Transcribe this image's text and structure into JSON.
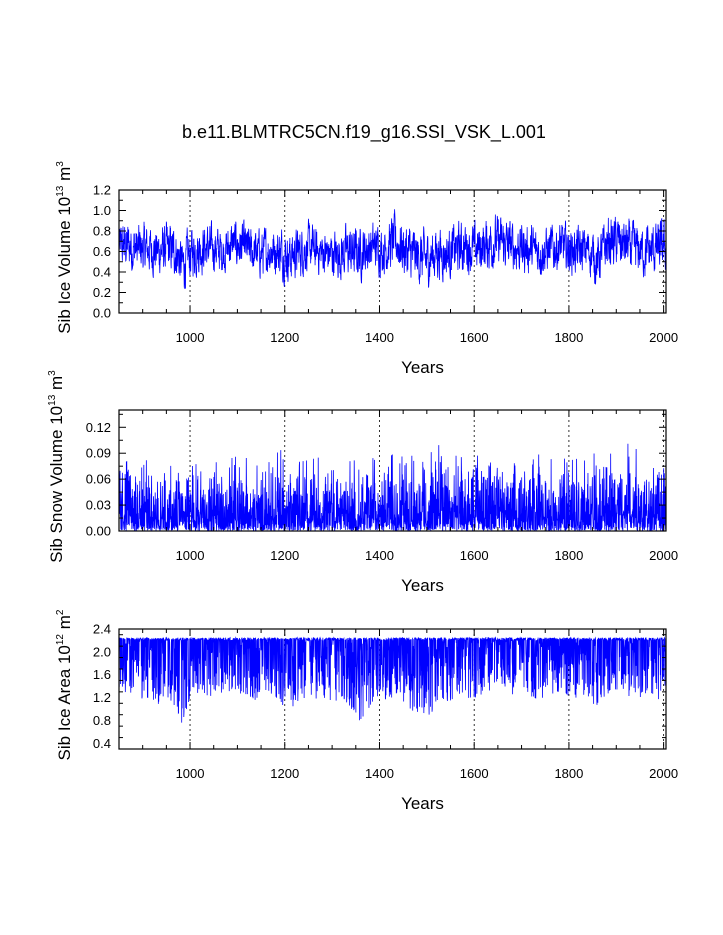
{
  "figure": {
    "title": "b.e11.BLMTRC5CN.f19_g16.SSI_VSK_L.001",
    "line_color": "#0000ff"
  },
  "chart_data": [
    {
      "type": "line",
      "title": "",
      "xlabel": "Years",
      "ylabel": {
        "prefix": "Sib Ice Volume 10",
        "exp": "13",
        "unit": " m",
        "unit_exp": "3"
      },
      "xlim": [
        850,
        2005
      ],
      "ylim": [
        0.0,
        1.2
      ],
      "x_ticks": [
        1000,
        1200,
        1400,
        1600,
        1800,
        2000
      ],
      "y_ticks": [
        "0.0",
        "0.2",
        "0.4",
        "0.6",
        "0.8",
        "1.0",
        "1.2"
      ],
      "y_tick_values": [
        0.0,
        0.2,
        0.4,
        0.6,
        0.8,
        1.0,
        1.2
      ],
      "x_grid": "dashed vertical lines at x ticks",
      "series": [
        {
          "color": "#0000ff",
          "x": [
            850,
            870,
            890,
            910,
            930,
            950,
            970,
            985,
            995,
            1010,
            1030,
            1050,
            1070,
            1090,
            1110,
            1130,
            1150,
            1170,
            1190,
            1210,
            1230,
            1250,
            1270,
            1290,
            1310,
            1330,
            1350,
            1370,
            1390,
            1410,
            1430,
            1440,
            1460,
            1480,
            1500,
            1520,
            1540,
            1560,
            1580,
            1600,
            1620,
            1640,
            1660,
            1680,
            1700,
            1720,
            1740,
            1760,
            1780,
            1800,
            1820,
            1840,
            1860,
            1870,
            1880,
            1900,
            1920,
            1940,
            1960,
            1980,
            2005
          ],
          "mean": [
            0.65,
            0.66,
            0.62,
            0.63,
            0.6,
            0.62,
            0.6,
            0.45,
            0.55,
            0.62,
            0.64,
            0.63,
            0.6,
            0.68,
            0.65,
            0.6,
            0.58,
            0.62,
            0.6,
            0.55,
            0.6,
            0.64,
            0.6,
            0.58,
            0.57,
            0.6,
            0.58,
            0.62,
            0.65,
            0.62,
            0.7,
            0.68,
            0.58,
            0.55,
            0.52,
            0.6,
            0.58,
            0.62,
            0.65,
            0.62,
            0.66,
            0.7,
            0.68,
            0.65,
            0.64,
            0.62,
            0.6,
            0.62,
            0.65,
            0.62,
            0.6,
            0.62,
            0.5,
            0.6,
            0.68,
            0.7,
            0.65,
            0.62,
            0.6,
            0.62,
            0.65
          ],
          "max": [
            0.92,
            0.98,
            0.92,
            0.9,
            0.88,
            0.9,
            0.86,
            0.8,
            0.85,
            0.96,
            0.92,
            0.9,
            0.88,
            0.95,
            0.92,
            0.88,
            0.86,
            0.9,
            0.88,
            0.85,
            0.9,
            0.92,
            0.88,
            0.86,
            0.85,
            0.88,
            0.86,
            0.9,
            0.92,
            0.9,
            1.02,
            0.98,
            0.9,
            0.88,
            0.86,
            0.9,
            0.88,
            0.92,
            0.96,
            0.92,
            1.0,
            1.05,
            0.98,
            0.95,
            0.94,
            0.92,
            0.9,
            0.92,
            0.95,
            0.92,
            0.9,
            0.92,
            0.85,
            0.9,
            1.02,
            1.03,
            0.98,
            0.92,
            0.9,
            0.92,
            0.96
          ],
          "min": [
            0.35,
            0.3,
            0.25,
            0.28,
            0.25,
            0.22,
            0.2,
            0.14,
            0.2,
            0.3,
            0.28,
            0.3,
            0.32,
            0.35,
            0.3,
            0.28,
            0.25,
            0.3,
            0.22,
            0.2,
            0.25,
            0.3,
            0.28,
            0.25,
            0.22,
            0.2,
            0.15,
            0.25,
            0.3,
            0.28,
            0.3,
            0.25,
            0.15,
            0.18,
            0.15,
            0.2,
            0.22,
            0.25,
            0.3,
            0.28,
            0.3,
            0.35,
            0.32,
            0.3,
            0.28,
            0.3,
            0.28,
            0.3,
            0.32,
            0.3,
            0.28,
            0.3,
            0.2,
            0.28,
            0.3,
            0.35,
            0.3,
            0.28,
            0.25,
            0.22,
            0.3
          ]
        }
      ]
    },
    {
      "type": "line",
      "title": "",
      "xlabel": "Years",
      "ylabel": {
        "prefix": "Sib Snow Volume 10",
        "exp": "13",
        "unit": " m",
        "unit_exp": "3"
      },
      "xlim": [
        850,
        2005
      ],
      "ylim": [
        0.0,
        0.14
      ],
      "x_ticks": [
        1000,
        1200,
        1400,
        1600,
        1800,
        2000
      ],
      "y_ticks": [
        "0.00",
        "0.03",
        "0.06",
        "0.09",
        "0.12"
      ],
      "y_tick_values": [
        0.0,
        0.03,
        0.06,
        0.09,
        0.12
      ],
      "x_grid": "dashed vertical lines at x ticks",
      "series": [
        {
          "color": "#0000ff",
          "x": [
            850,
            870,
            890,
            910,
            930,
            950,
            970,
            990,
            1010,
            1030,
            1050,
            1070,
            1090,
            1110,
            1130,
            1150,
            1170,
            1190,
            1210,
            1230,
            1250,
            1270,
            1290,
            1310,
            1330,
            1350,
            1370,
            1390,
            1410,
            1430,
            1440,
            1460,
            1480,
            1500,
            1520,
            1530,
            1550,
            1570,
            1590,
            1610,
            1630,
            1655,
            1670,
            1690,
            1710,
            1730,
            1750,
            1770,
            1790,
            1810,
            1830,
            1850,
            1870,
            1890,
            1910,
            1930,
            1950,
            1970,
            1990,
            2005
          ],
          "mean": [
            0.03,
            0.032,
            0.03,
            0.029,
            0.03,
            0.028,
            0.03,
            0.031,
            0.03,
            0.032,
            0.03,
            0.031,
            0.033,
            0.03,
            0.029,
            0.03,
            0.031,
            0.03,
            0.029,
            0.03,
            0.031,
            0.03,
            0.029,
            0.03,
            0.031,
            0.03,
            0.032,
            0.031,
            0.03,
            0.033,
            0.032,
            0.03,
            0.031,
            0.03,
            0.032,
            0.033,
            0.031,
            0.03,
            0.031,
            0.032,
            0.031,
            0.032,
            0.03,
            0.031,
            0.032,
            0.03,
            0.031,
            0.03,
            0.031,
            0.032,
            0.03,
            0.031,
            0.03,
            0.031,
            0.032,
            0.03,
            0.031,
            0.03,
            0.031,
            0.03
          ],
          "max": [
            0.085,
            0.08,
            0.075,
            0.085,
            0.078,
            0.08,
            0.075,
            0.078,
            0.085,
            0.082,
            0.08,
            0.078,
            0.085,
            0.088,
            0.08,
            0.078,
            0.08,
            0.095,
            0.078,
            0.08,
            0.082,
            0.085,
            0.08,
            0.078,
            0.08,
            0.082,
            0.085,
            0.088,
            0.08,
            0.09,
            0.108,
            0.085,
            0.09,
            0.088,
            0.095,
            0.12,
            0.09,
            0.085,
            0.088,
            0.09,
            0.088,
            0.12,
            0.09,
            0.085,
            0.088,
            0.09,
            0.085,
            0.082,
            0.088,
            0.085,
            0.08,
            0.09,
            0.088,
            0.095,
            0.09,
            0.105,
            0.088,
            0.085,
            0.088,
            0.09
          ],
          "min": [
            0.0,
            0.0,
            0.0,
            0.0,
            0.0,
            0.0,
            0.0,
            0.0,
            0.0,
            0.0,
            0.0,
            0.0,
            0.0,
            0.0,
            0.0,
            0.0,
            0.0,
            0.0,
            0.0,
            0.0,
            0.0,
            0.0,
            0.0,
            0.0,
            0.0,
            0.0,
            0.0,
            0.0,
            0.0,
            0.0,
            0.0,
            0.0,
            0.0,
            0.0,
            0.0,
            0.0,
            0.0,
            0.0,
            0.0,
            0.0,
            0.0,
            0.0,
            0.0,
            0.0,
            0.0,
            0.0,
            0.0,
            0.0,
            0.0,
            0.0,
            0.0,
            0.0,
            0.0,
            0.0,
            0.0,
            0.0,
            0.0,
            0.0,
            0.0,
            0.0
          ]
        }
      ]
    },
    {
      "type": "line",
      "title": "",
      "xlabel": "Years",
      "ylabel": {
        "prefix": "Sib Ice Area 10",
        "exp": "12",
        "unit": " m",
        "unit_exp": "2"
      },
      "xlim": [
        850,
        2005
      ],
      "ylim": [
        0.3,
        2.4
      ],
      "x_ticks": [
        1000,
        1200,
        1400,
        1600,
        1800,
        2000
      ],
      "y_ticks": [
        "0.4",
        "0.8",
        "1.2",
        "1.6",
        "2.0",
        "2.4"
      ],
      "y_tick_values": [
        0.4,
        0.8,
        1.2,
        1.6,
        2.0,
        2.4
      ],
      "x_grid": "dashed vertical lines at x ticks",
      "series": [
        {
          "color": "#0000ff",
          "x": [
            850,
            870,
            890,
            910,
            930,
            950,
            970,
            985,
            995,
            1010,
            1030,
            1050,
            1070,
            1090,
            1110,
            1130,
            1150,
            1170,
            1190,
            1210,
            1230,
            1250,
            1270,
            1290,
            1310,
            1330,
            1350,
            1360,
            1380,
            1400,
            1420,
            1440,
            1460,
            1480,
            1500,
            1520,
            1540,
            1560,
            1580,
            1600,
            1620,
            1640,
            1660,
            1680,
            1700,
            1720,
            1740,
            1760,
            1780,
            1800,
            1820,
            1840,
            1860,
            1870,
            1880,
            1900,
            1920,
            1940,
            1960,
            1980,
            2005
          ],
          "mean": [
            1.95,
            1.98,
            1.92,
            1.95,
            1.9,
            1.92,
            1.9,
            1.7,
            1.85,
            1.95,
            1.96,
            1.95,
            1.92,
            1.98,
            1.96,
            1.92,
            1.9,
            1.94,
            1.9,
            1.85,
            1.92,
            1.95,
            1.92,
            1.9,
            1.88,
            1.9,
            1.85,
            1.8,
            1.9,
            1.95,
            1.92,
            2.0,
            1.92,
            1.88,
            1.85,
            1.9,
            1.88,
            1.92,
            1.95,
            1.92,
            1.96,
            2.0,
            1.98,
            1.96,
            1.95,
            1.92,
            1.9,
            1.92,
            1.96,
            1.92,
            1.9,
            1.92,
            1.85,
            1.9,
            1.98,
            2.0,
            1.96,
            1.92,
            1.9,
            1.92,
            1.95
          ],
          "max": [
            2.25,
            2.25,
            2.25,
            2.25,
            2.25,
            2.25,
            2.25,
            2.25,
            2.25,
            2.25,
            2.25,
            2.25,
            2.25,
            2.25,
            2.25,
            2.25,
            2.25,
            2.25,
            2.25,
            2.25,
            2.25,
            2.25,
            2.25,
            2.25,
            2.25,
            2.25,
            2.25,
            2.25,
            2.25,
            2.25,
            2.25,
            2.25,
            2.25,
            2.25,
            2.25,
            2.25,
            2.25,
            2.25,
            2.25,
            2.25,
            2.25,
            2.25,
            2.25,
            2.25,
            2.25,
            2.25,
            2.25,
            2.25,
            2.25,
            2.25,
            2.25,
            2.25,
            2.25,
            2.25,
            2.25,
            2.25,
            2.25,
            2.25,
            2.25,
            2.25,
            2.25
          ],
          "min": [
            1.2,
            1.1,
            1.0,
            1.05,
            0.95,
            1.0,
            0.9,
            0.65,
            0.8,
            1.1,
            1.05,
            1.1,
            1.15,
            1.2,
            1.1,
            1.05,
            1.0,
            1.1,
            0.95,
            0.8,
            1.0,
            1.1,
            1.05,
            1.0,
            0.95,
            0.9,
            0.75,
            0.5,
            0.9,
            1.05,
            1.0,
            1.1,
            0.8,
            0.7,
            0.65,
            0.8,
            0.85,
            0.95,
            1.05,
            1.0,
            1.1,
            1.2,
            1.15,
            1.1,
            1.05,
            1.1,
            1.05,
            1.1,
            1.15,
            1.1,
            1.05,
            1.1,
            0.7,
            1.0,
            1.1,
            1.2,
            1.1,
            1.05,
            1.0,
            0.95,
            1.1
          ]
        }
      ]
    }
  ]
}
